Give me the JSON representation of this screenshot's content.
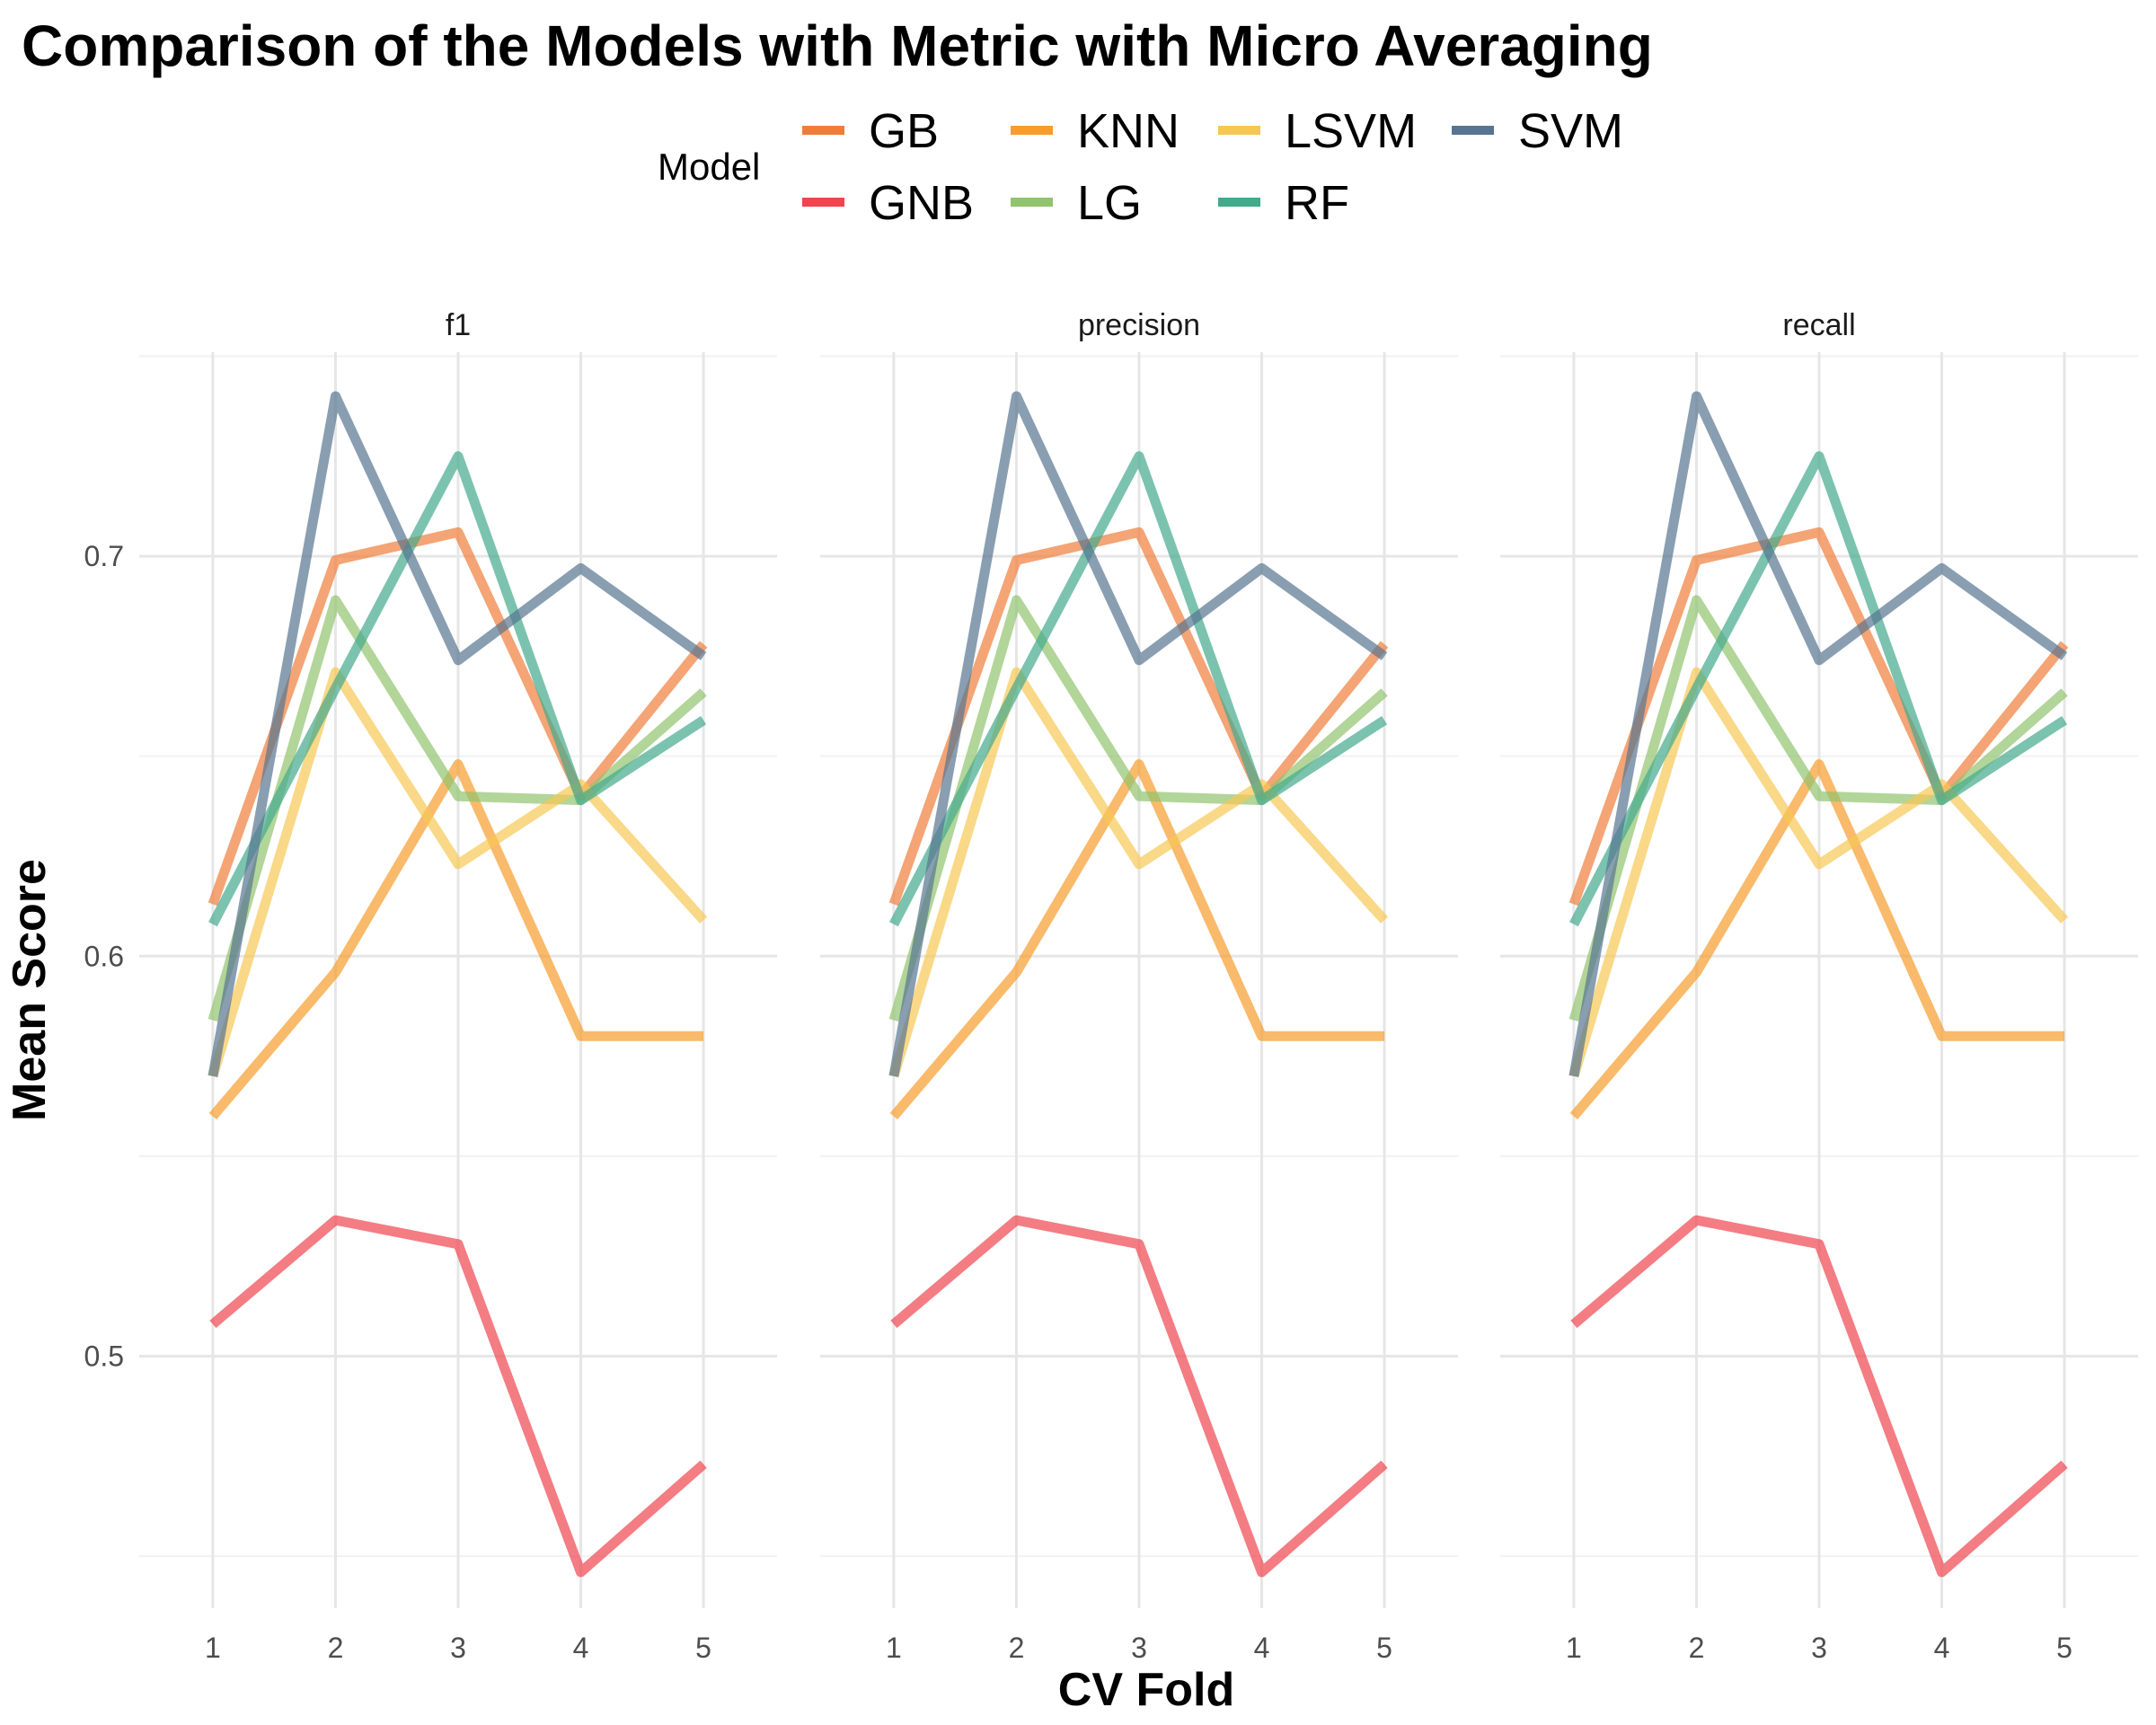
{
  "chart_data": {
    "type": "line",
    "title": "Comparison of the Models with Metric with Micro Averaging",
    "xlabel": "CV Fold",
    "ylabel": "Mean Score",
    "legend": {
      "title": "Model",
      "placement": "top",
      "entries": [
        "GB",
        "GNB",
        "KNN",
        "LG",
        "LSVM",
        "RF",
        "SVM"
      ]
    },
    "facets": [
      "f1",
      "precision",
      "recall"
    ],
    "x": [
      1,
      2,
      3,
      4,
      5
    ],
    "x_ticks": [
      "1",
      "2",
      "3",
      "4",
      "5"
    ],
    "y_ticks": [
      "0.5",
      "0.6",
      "0.7"
    ],
    "y_tick_values": [
      0.5,
      0.6,
      0.7
    ],
    "ylim": [
      0.437,
      0.751
    ],
    "xlim": [
      0.4,
      5.6
    ],
    "grid": true,
    "series": [
      {
        "name": "GB",
        "color": "#EF7D3A",
        "values": [
          0.613,
          0.699,
          0.706,
          0.64,
          0.678
        ]
      },
      {
        "name": "GNB",
        "color": "#F0444F",
        "values": [
          0.508,
          0.534,
          0.528,
          0.446,
          0.473
        ]
      },
      {
        "name": "KNN",
        "color": "#F79D2C",
        "values": [
          0.56,
          0.596,
          0.648,
          0.58,
          0.58
        ]
      },
      {
        "name": "LG",
        "color": "#92C36E",
        "values": [
          0.584,
          0.689,
          0.64,
          0.639,
          0.666
        ]
      },
      {
        "name": "LSVM",
        "color": "#F7C754",
        "values": [
          0.57,
          0.671,
          0.623,
          0.643,
          0.609
        ]
      },
      {
        "name": "RF",
        "color": "#43AA8B",
        "values": [
          0.608,
          0.667,
          0.725,
          0.639,
          0.659
        ]
      },
      {
        "name": "SVM",
        "color": "#577590",
        "values": [
          0.57,
          0.74,
          0.674,
          0.697,
          0.675
        ]
      }
    ]
  }
}
